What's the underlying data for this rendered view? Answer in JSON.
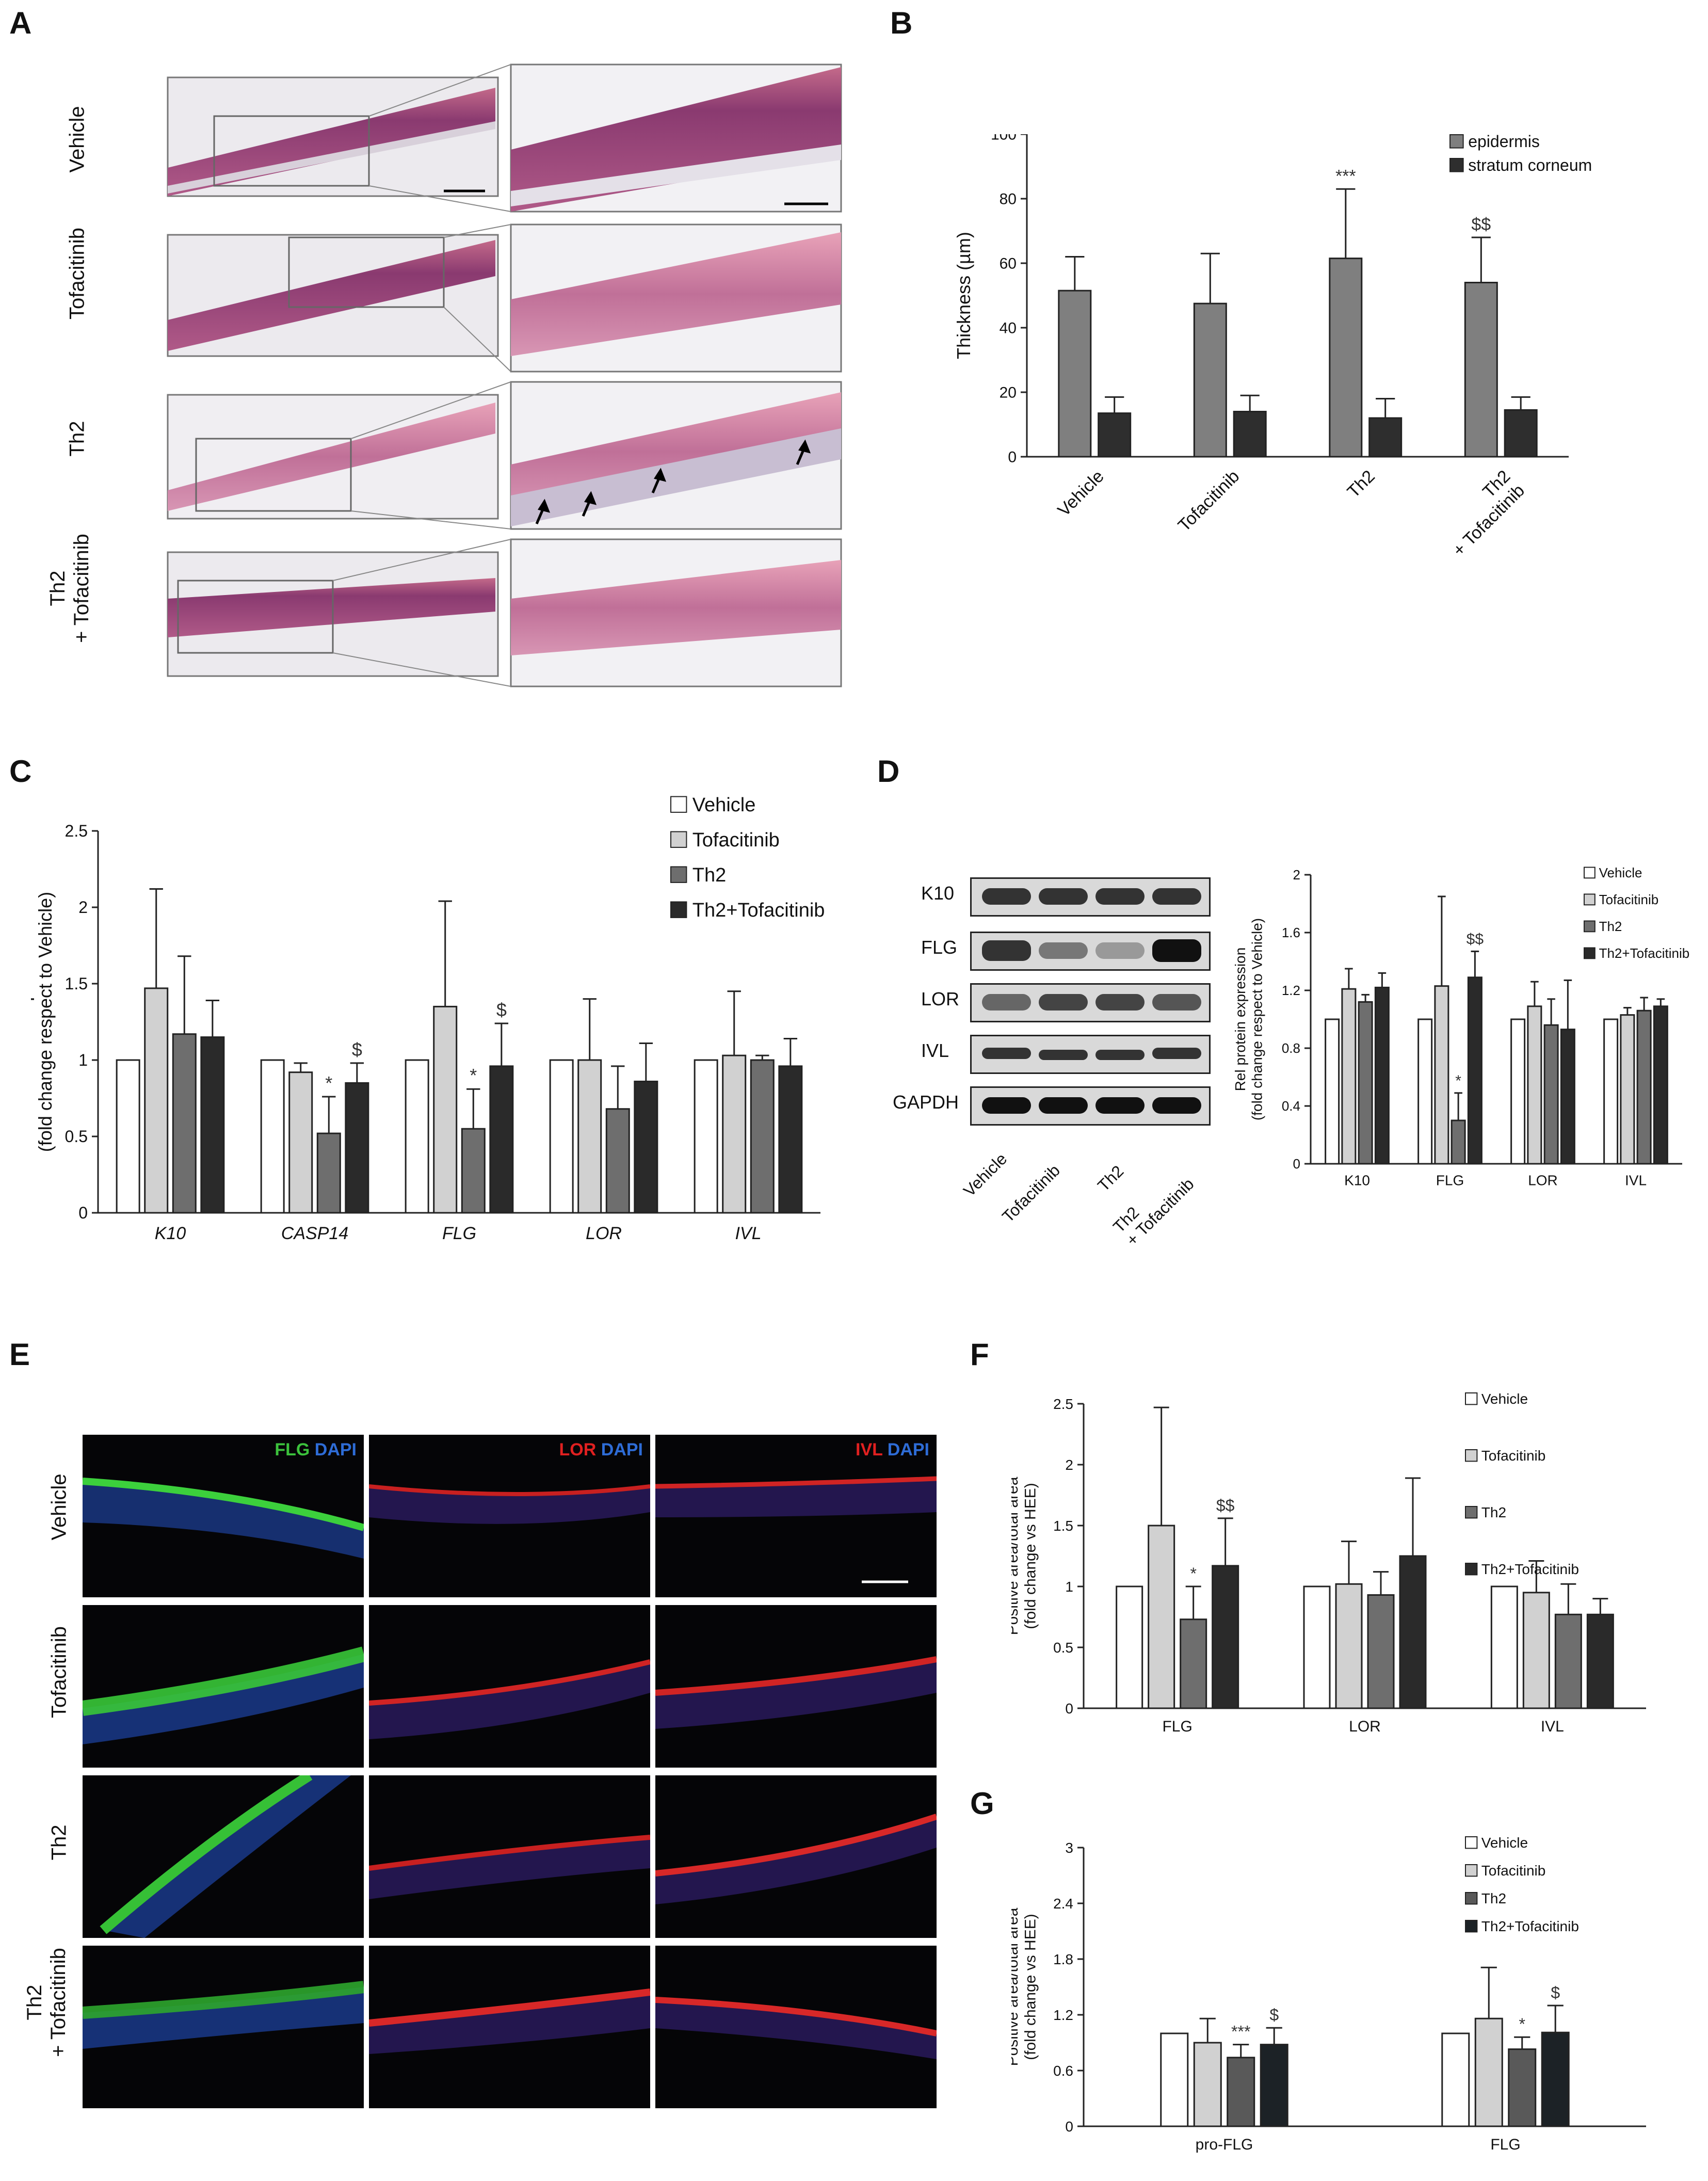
{
  "panels": {
    "A": "A",
    "B": "B",
    "C": "C",
    "D": "D",
    "E": "E",
    "F": "F",
    "G": "G"
  },
  "panel_a": {
    "rows": [
      "Vehicle",
      "Tofacitinib",
      "Th2",
      "Th2\n+ Tofacitinib"
    ]
  },
  "panel_d": {
    "blot_labels": [
      "K10",
      "FLG",
      "LOR",
      "IVL",
      "GAPDH"
    ],
    "lanes": [
      "Vehicle",
      "Tofacitinib",
      "Th2",
      "Th2\n+ Tofacitinib"
    ]
  },
  "panel_e": {
    "rows": [
      "Vehicle",
      "Tofacitinib",
      "Th2",
      "Th2\n+ Tofacitinib"
    ],
    "columns": [
      {
        "marker": "FLG",
        "marker_color": "#3cc23c",
        "counter": "DAPI",
        "counter_color": "#2e6cd6"
      },
      {
        "marker": "LOR",
        "marker_color": "#e02020",
        "counter": "DAPI",
        "counter_color": "#2e6cd6"
      },
      {
        "marker": "IVL",
        "marker_color": "#e02020",
        "counter": "DAPI",
        "counter_color": "#2e6cd6"
      }
    ]
  },
  "colors": {
    "vehicle": "#ffffff",
    "tofacitinib": "#d1d1d1",
    "th2": "#6e6e6e",
    "th2_tofacitinib": "#2a2a2a",
    "epidermis": "#7f7f7f",
    "stratum_corneum": "#2e2e2e",
    "g_th2": "#595959",
    "g_th2_tofacitinib": "#1c2226"
  },
  "chart_data": [
    {
      "id": "B",
      "type": "bar",
      "categories": [
        "Vehicle",
        "Tofacitinib",
        "Th2",
        "Th2\n+ Tofacitinib"
      ],
      "series": [
        {
          "name": "epidermis",
          "values": [
            51.5,
            47.5,
            61.5,
            54
          ],
          "errors": [
            10.5,
            15.5,
            21.5,
            14
          ]
        },
        {
          "name": "stratum corneum",
          "values": [
            13.5,
            14,
            12,
            14.5
          ],
          "errors": [
            5,
            5,
            6,
            4
          ]
        }
      ],
      "annotations": [
        {
          "category": "Th2",
          "series": "epidermis",
          "text": "***"
        },
        {
          "category": "Th2\n+ Tofacitinib",
          "series": "epidermis",
          "text": "$$"
        }
      ],
      "xlabel": "",
      "ylabel": "Thickness (µm)",
      "ylim": [
        0,
        100
      ],
      "yticks": [
        0,
        20,
        40,
        60,
        80,
        100
      ],
      "legend": "top-right",
      "grid": false
    },
    {
      "id": "C",
      "type": "bar",
      "categories": [
        "K10",
        "CASP14",
        "FLG",
        "LOR",
        "IVL"
      ],
      "category_style": "italic",
      "series": [
        {
          "name": "Vehicle",
          "values": [
            1,
            1,
            1,
            1,
            1
          ],
          "errors": [
            0,
            0,
            0,
            0,
            0
          ]
        },
        {
          "name": "Tofacitinib",
          "values": [
            1.47,
            0.92,
            1.35,
            1.0,
            1.03
          ],
          "errors": [
            0.65,
            0.06,
            0.69,
            0.4,
            0.42
          ]
        },
        {
          "name": "Th2",
          "values": [
            1.17,
            0.52,
            0.55,
            0.68,
            1.0
          ],
          "errors": [
            0.51,
            0.24,
            0.26,
            0.28,
            0.03
          ]
        },
        {
          "name": "Th2+Tofacitinib",
          "values": [
            1.15,
            0.85,
            0.96,
            0.86,
            0.96
          ],
          "errors": [
            0.24,
            0.13,
            0.28,
            0.25,
            0.18
          ]
        }
      ],
      "annotations": [
        {
          "category": "CASP14",
          "series": "Th2",
          "text": "*"
        },
        {
          "category": "CASP14",
          "series": "Th2+Tofacitinib",
          "text": "$"
        },
        {
          "category": "FLG",
          "series": "Th2",
          "text": "*"
        },
        {
          "category": "FLG",
          "series": "Th2+Tofacitinib",
          "text": "$"
        }
      ],
      "xlabel": "",
      "ylabel": "Rel mRNA expression\n(fold change respect to Vehicle)",
      "ylim": [
        0,
        2.5
      ],
      "yticks": [
        0,
        0.5,
        1,
        1.5,
        2,
        2.5
      ],
      "legend": "top-right",
      "grid": false
    },
    {
      "id": "D",
      "type": "bar",
      "categories": [
        "K10",
        "FLG",
        "LOR",
        "IVL"
      ],
      "series": [
        {
          "name": "Vehicle",
          "values": [
            1,
            1,
            1,
            1
          ],
          "errors": [
            0,
            0,
            0,
            0
          ]
        },
        {
          "name": "Tofacitinib",
          "values": [
            1.21,
            1.23,
            1.09,
            1.03
          ],
          "errors": [
            0.14,
            0.62,
            0.17,
            0.05
          ]
        },
        {
          "name": "Th2",
          "values": [
            1.12,
            0.3,
            0.96,
            1.06
          ],
          "errors": [
            0.05,
            0.19,
            0.18,
            0.09
          ]
        },
        {
          "name": "Th2+Tofacitinib",
          "values": [
            1.22,
            1.29,
            0.93,
            1.09
          ],
          "errors": [
            0.1,
            0.18,
            0.34,
            0.05
          ]
        }
      ],
      "annotations": [
        {
          "category": "FLG",
          "series": "Th2",
          "text": "*"
        },
        {
          "category": "FLG",
          "series": "Th2+Tofacitinib",
          "text": "$$"
        }
      ],
      "xlabel": "",
      "ylabel": "Rel protein expression\n(fold change respect to Vehicle)",
      "ylim": [
        0,
        2
      ],
      "yticks": [
        0,
        0.4,
        0.8,
        1.2,
        1.6,
        2
      ],
      "legend": "top-right",
      "grid": false
    },
    {
      "id": "F",
      "type": "bar",
      "categories": [
        "FLG",
        "LOR",
        "IVL"
      ],
      "series": [
        {
          "name": "Vehicle",
          "values": [
            1,
            1,
            1
          ],
          "errors": [
            0,
            0,
            0
          ]
        },
        {
          "name": "Tofacitinib",
          "values": [
            1.5,
            1.02,
            0.95
          ],
          "errors": [
            0.97,
            0.35,
            0.26
          ]
        },
        {
          "name": "Th2",
          "values": [
            0.73,
            0.93,
            0.77
          ],
          "errors": [
            0.27,
            0.19,
            0.25
          ]
        },
        {
          "name": "Th2+Tofacitinib",
          "values": [
            1.17,
            1.25,
            0.77
          ],
          "errors": [
            0.39,
            0.64,
            0.13
          ]
        }
      ],
      "annotations": [
        {
          "category": "FLG",
          "series": "Th2",
          "text": "*"
        },
        {
          "category": "FLG",
          "series": "Th2+Tofacitinib",
          "text": "$$"
        }
      ],
      "xlabel": "",
      "ylabel": "Positive area/total area\n(fold change vs HEE)",
      "ylim": [
        0,
        2.5
      ],
      "yticks": [
        0,
        0.5,
        1,
        1.5,
        2,
        2.5
      ],
      "legend": "top-right",
      "grid": false
    },
    {
      "id": "G",
      "type": "bar",
      "categories": [
        "pro-FLG",
        "FLG"
      ],
      "series": [
        {
          "name": "Vehicle",
          "values": [
            1,
            1
          ],
          "errors": [
            0,
            0
          ]
        },
        {
          "name": "Tofacitinib",
          "values": [
            0.9,
            1.16
          ],
          "errors": [
            0.26,
            0.55
          ]
        },
        {
          "name": "Th2",
          "values": [
            0.74,
            0.83
          ],
          "errors": [
            0.14,
            0.13
          ]
        },
        {
          "name": "Th2+Tofacitinib",
          "values": [
            0.88,
            1.01
          ],
          "errors": [
            0.18,
            0.29
          ]
        }
      ],
      "annotations": [
        {
          "category": "pro-FLG",
          "series": "Th2",
          "text": "***"
        },
        {
          "category": "pro-FLG",
          "series": "Th2+Tofacitinib",
          "text": "$"
        },
        {
          "category": "FLG",
          "series": "Th2",
          "text": "*"
        },
        {
          "category": "FLG",
          "series": "Th2+Tofacitinib",
          "text": "$"
        }
      ],
      "xlabel": "",
      "ylabel": "Positive area/total area\n(fold change vs HEE)",
      "ylim": [
        0,
        3
      ],
      "yticks": [
        0,
        0.6,
        1.2,
        1.8,
        2.4,
        3
      ],
      "legend": "top-right",
      "grid": false
    }
  ]
}
